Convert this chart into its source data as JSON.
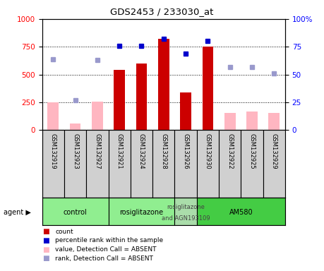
{
  "title": "GDS2453 / 233030_at",
  "samples": [
    "GSM132919",
    "GSM132923",
    "GSM132927",
    "GSM132921",
    "GSM132924",
    "GSM132928",
    "GSM132926",
    "GSM132930",
    "GSM132922",
    "GSM132925",
    "GSM132929"
  ],
  "count_values": [
    null,
    null,
    null,
    540,
    600,
    820,
    340,
    750,
    null,
    null,
    null
  ],
  "count_absent": [
    250,
    60,
    255,
    null,
    null,
    null,
    null,
    null,
    null,
    null,
    null
  ],
  "rank_present": [
    null,
    null,
    null,
    76,
    76,
    82,
    69,
    80,
    null,
    null,
    null
  ],
  "rank_absent": [
    64,
    27,
    63,
    null,
    null,
    null,
    null,
    null,
    null,
    null,
    null
  ],
  "absent_value_am580": [
    null,
    null,
    null,
    null,
    null,
    null,
    null,
    null,
    155,
    170,
    155
  ],
  "absent_rank_am580": [
    null,
    null,
    null,
    null,
    null,
    null,
    null,
    null,
    57,
    57,
    51
  ],
  "agent_groups": [
    {
      "label": "control",
      "start": 0,
      "end": 2,
      "color": "#90EE90"
    },
    {
      "label": "rosiglitazone",
      "start": 3,
      "end": 5,
      "color": "#90EE90"
    },
    {
      "label": "rosiglitazone\nand AGN193109",
      "start": 6,
      "end": 6,
      "color": "#90EE90"
    },
    {
      "label": "AM580",
      "start": 7,
      "end": 10,
      "color": "#32CD32"
    }
  ],
  "bar_color_present": "#CC0000",
  "bar_color_absent": "#FFB6C1",
  "dot_color_present": "#0000CC",
  "dot_color_absent": "#9999CC",
  "ylim_left": [
    0,
    1000
  ],
  "ylim_right": [
    0,
    100
  ],
  "yticks_left": [
    0,
    250,
    500,
    750,
    1000
  ],
  "yticks_right": [
    0,
    25,
    50,
    75,
    100
  ],
  "bar_width": 0.5
}
